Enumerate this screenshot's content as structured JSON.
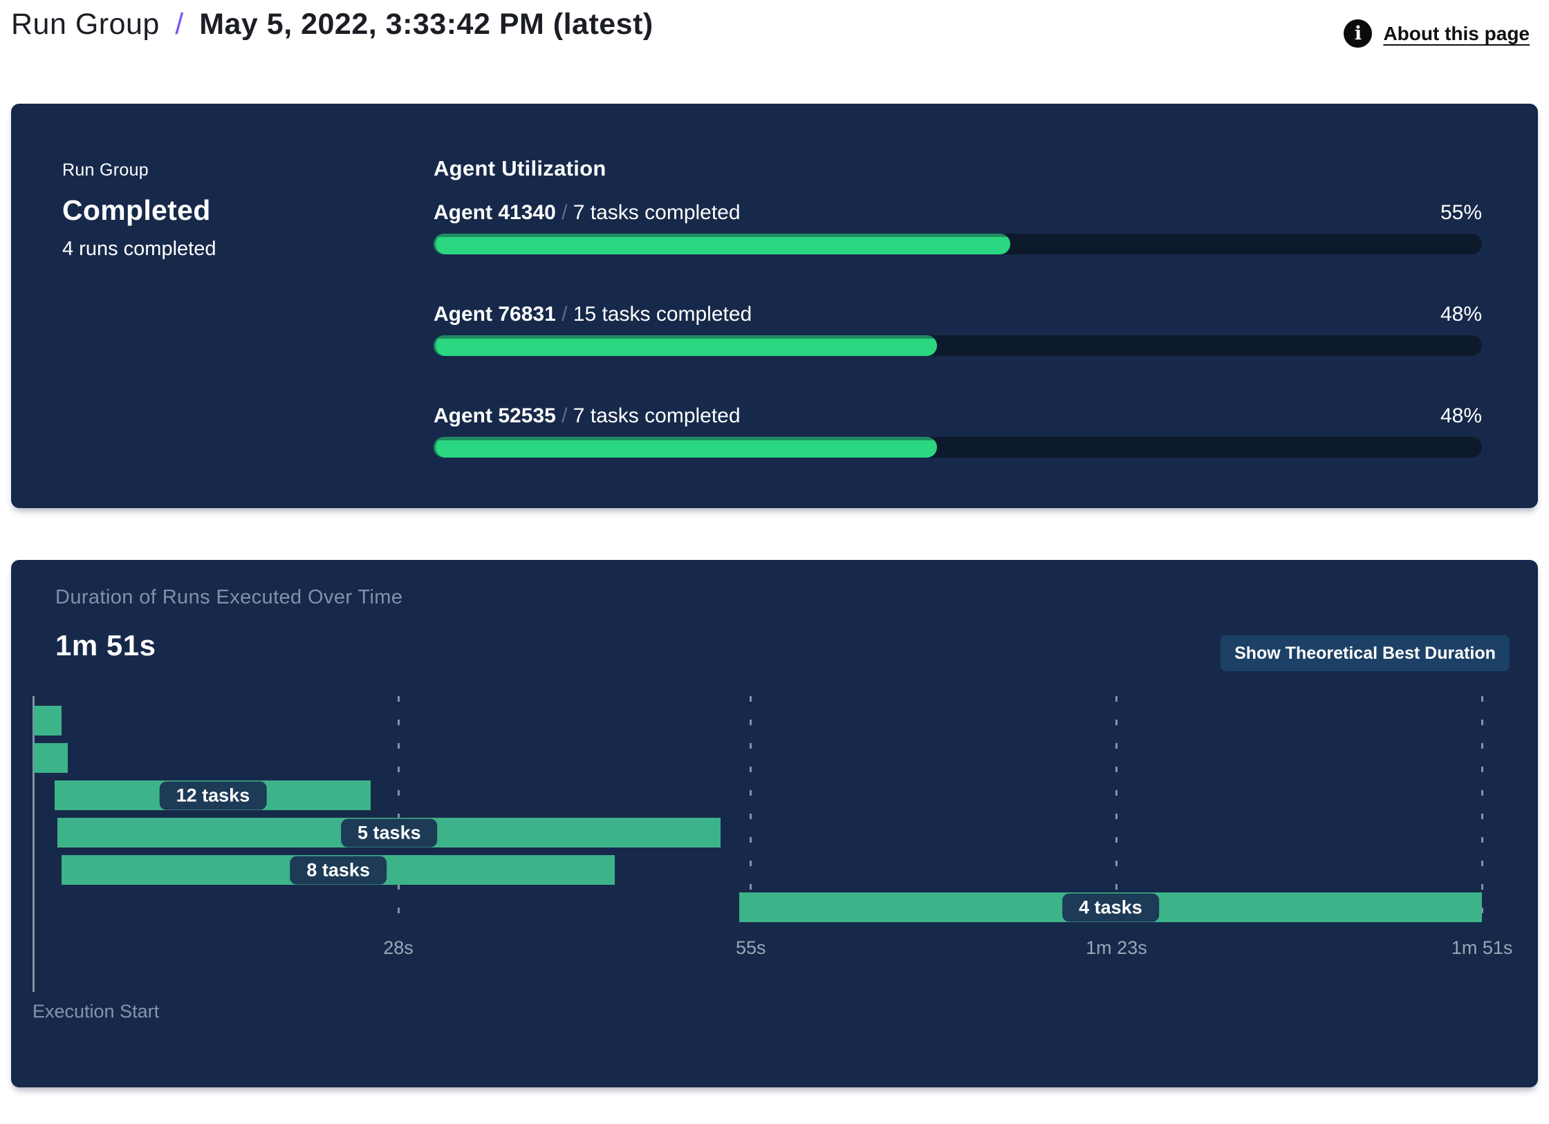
{
  "header": {
    "breadcrumb": {
      "root": "Run Group",
      "separator": "/",
      "current": "May 5, 2022, 3:33:42 PM (latest)"
    },
    "about_link": {
      "label": "About this page",
      "icon": "info-icon",
      "icon_glyph": "i"
    }
  },
  "run_group_panel": {
    "eyebrow": "Run Group",
    "status": "Completed",
    "sub_status": "4 runs completed"
  },
  "agent_utilization": {
    "title": "Agent Utilization",
    "separator": "/",
    "agents": [
      {
        "name": "Agent 41340",
        "tasks_completed": "7 tasks completed",
        "utilization_percent": 55,
        "percent_label": "55%"
      },
      {
        "name": "Agent 76831",
        "tasks_completed": "15 tasks completed",
        "utilization_percent": 48,
        "percent_label": "48%"
      },
      {
        "name": "Agent 52535",
        "tasks_completed": "7 tasks completed",
        "utilization_percent": 48,
        "percent_label": "48%"
      }
    ]
  },
  "duration_panel": {
    "title": "Duration of Runs Executed Over Time",
    "total_duration": "1m 51s",
    "button_label": "Show Theoretical Best Duration",
    "x_axis_label": "Execution Start"
  },
  "chart_data": [
    {
      "type": "bar",
      "subtype": "horizontal-progress",
      "title": "Agent Utilization",
      "categories": [
        "Agent 41340",
        "Agent 76831",
        "Agent 52535"
      ],
      "values": [
        55,
        48,
        48
      ],
      "value_labels": [
        "55%",
        "48%",
        "48%"
      ],
      "annotations": [
        "7 tasks completed",
        "15 tasks completed",
        "7 tasks completed"
      ],
      "xlim": [
        0,
        100
      ]
    },
    {
      "type": "bar",
      "subtype": "gantt-timeline",
      "title": "Duration of Runs Executed Over Time",
      "total_duration_label": "1m 51s",
      "x_axis": {
        "label": "Execution Start",
        "unit": "seconds",
        "range": [
          0,
          111
        ],
        "ticks": [
          {
            "t": 28,
            "label": "28s"
          },
          {
            "t": 55,
            "label": "55s"
          },
          {
            "t": 83,
            "label": "1m 23s"
          },
          {
            "t": 111,
            "label": "1m 51s"
          }
        ]
      },
      "runs": [
        {
          "start": 0.1,
          "end": 2.2,
          "label": ""
        },
        {
          "start": 0.1,
          "end": 2.7,
          "label": ""
        },
        {
          "start": 1.7,
          "end": 25.9,
          "label": "12 tasks"
        },
        {
          "start": 1.9,
          "end": 52.7,
          "label": "5 tasks"
        },
        {
          "start": 2.2,
          "end": 44.6,
          "label": "8 tasks"
        },
        {
          "start": 54.1,
          "end": 111,
          "label": "4 tasks"
        }
      ]
    }
  ],
  "colors": {
    "page_background": "#ffffff",
    "panel_background": "#17294a",
    "progress_fill": "#2bd781",
    "progress_fill_edge": "#1f8c5f",
    "progress_track": "#0d1a2b",
    "gantt_bar": "#3db389",
    "badge_background": "#1d3a57",
    "button_background": "#1d4166",
    "muted_text": "#8290a9",
    "tick_text": "#9aa6b8",
    "accent_purple": "#7c54f3",
    "info_icon_background": "#0b0b0d"
  }
}
